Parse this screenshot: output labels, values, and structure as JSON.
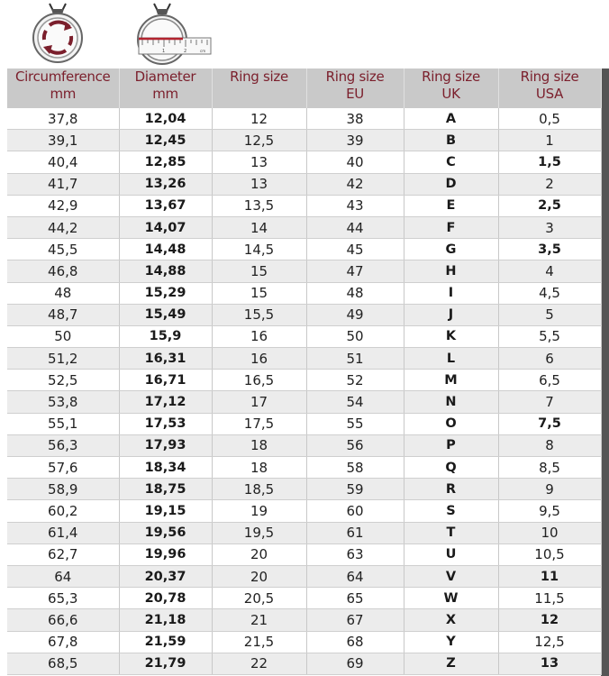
{
  "colors": {
    "header_bg": "#c9c9c9",
    "header_text": "#7b1f2c",
    "icon_red": "#7b1f2c"
  },
  "icons": [
    "ring-circumference-icon",
    "ring-diameter-ruler-icon"
  ],
  "ruler_labels": [
    "1",
    "2",
    "cm"
  ],
  "headers": [
    {
      "line1": "Circumference",
      "line2": "mm"
    },
    {
      "line1": "Diameter",
      "line2": "mm"
    },
    {
      "line1": "Ring size",
      "line2": ""
    },
    {
      "line1": "Ring size",
      "line2": "EU"
    },
    {
      "line1": "Ring size",
      "line2": "UK"
    },
    {
      "line1": "Ring size",
      "line2": "USA"
    }
  ],
  "rows": [
    [
      "37,8",
      "12,04",
      "12",
      "38",
      "A",
      "0,5"
    ],
    [
      "39,1",
      "12,45",
      "12,5",
      "39",
      "B",
      "1"
    ],
    [
      "40,4",
      "12,85",
      "13",
      "40",
      "C",
      "1,5"
    ],
    [
      "41,7",
      "13,26",
      "13",
      "42",
      "D",
      "2"
    ],
    [
      "42,9",
      "13,67",
      "13,5",
      "43",
      "E",
      "2,5"
    ],
    [
      "44,2",
      "14,07",
      "14",
      "44",
      "F",
      "3"
    ],
    [
      "45,5",
      "14,48",
      "14,5",
      "45",
      "G",
      "3,5"
    ],
    [
      "46,8",
      "14,88",
      "15",
      "47",
      "H",
      "4"
    ],
    [
      "48",
      "15,29",
      "15",
      "48",
      "I",
      "4,5"
    ],
    [
      "48,7",
      "15,49",
      "15,5",
      "49",
      "J",
      "5"
    ],
    [
      "50",
      "15,9",
      "16",
      "50",
      "K",
      "5,5"
    ],
    [
      "51,2",
      "16,31",
      "16",
      "51",
      "L",
      "6"
    ],
    [
      "52,5",
      "16,71",
      "16,5",
      "52",
      "M",
      "6,5"
    ],
    [
      "53,8",
      "17,12",
      "17",
      "54",
      "N",
      "7"
    ],
    [
      "55,1",
      "17,53",
      "17,5",
      "55",
      "O",
      "7,5"
    ],
    [
      "56,3",
      "17,93",
      "18",
      "56",
      "P",
      "8"
    ],
    [
      "57,6",
      "18,34",
      "18",
      "58",
      "Q",
      "8,5"
    ],
    [
      "58,9",
      "18,75",
      "18,5",
      "59",
      "R",
      "9"
    ],
    [
      "60,2",
      "19,15",
      "19",
      "60",
      "S",
      "9,5"
    ],
    [
      "61,4",
      "19,56",
      "19,5",
      "61",
      "T",
      "10"
    ],
    [
      "62,7",
      "19,96",
      "20",
      "63",
      "U",
      "10,5"
    ],
    [
      "64",
      "20,37",
      "20",
      "64",
      "V",
      "11"
    ],
    [
      "65,3",
      "20,78",
      "20,5",
      "65",
      "W",
      "11,5"
    ],
    [
      "66,6",
      "21,18",
      "21",
      "67",
      "X",
      "12"
    ],
    [
      "67,8",
      "21,59",
      "21,5",
      "68",
      "Y",
      "12,5"
    ],
    [
      "68,5",
      "21,79",
      "22",
      "69",
      "Z",
      "13"
    ]
  ]
}
